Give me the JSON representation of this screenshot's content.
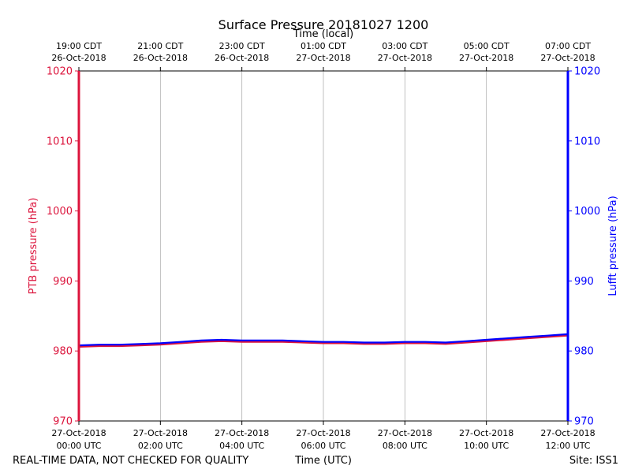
{
  "chart_data": {
    "type": "line",
    "title": "Surface Pressure 20181027 1200",
    "xlabel_bottom": "Time (UTC)",
    "xlabel_top": "Time (local)",
    "ylabel_left": "PTB pressure (hPa)",
    "ylabel_right": "Lufft pressure (hPa)",
    "ylim": [
      970,
      1020
    ],
    "yticks": [
      970,
      980,
      990,
      1000,
      1010,
      1020
    ],
    "xlim_hours": [
      0,
      12
    ],
    "bottom_ticks": [
      {
        "hour": 0,
        "line1": "27-Oct-2018",
        "line2": "00:00 UTC"
      },
      {
        "hour": 2,
        "line1": "27-Oct-2018",
        "line2": "02:00 UTC"
      },
      {
        "hour": 4,
        "line1": "27-Oct-2018",
        "line2": "04:00 UTC"
      },
      {
        "hour": 6,
        "line1": "27-Oct-2018",
        "line2": "06:00 UTC"
      },
      {
        "hour": 8,
        "line1": "27-Oct-2018",
        "line2": "08:00 UTC"
      },
      {
        "hour": 10,
        "line1": "27-Oct-2018",
        "line2": "10:00 UTC"
      },
      {
        "hour": 12,
        "line1": "27-Oct-2018",
        "line2": "12:00 UTC"
      }
    ],
    "top_ticks": [
      {
        "hour": 0,
        "line1": "19:00 CDT",
        "line2": "26-Oct-2018"
      },
      {
        "hour": 2,
        "line1": "21:00 CDT",
        "line2": "26-Oct-2018"
      },
      {
        "hour": 4,
        "line1": "23:00 CDT",
        "line2": "26-Oct-2018"
      },
      {
        "hour": 6,
        "line1": "01:00 CDT",
        "line2": "27-Oct-2018"
      },
      {
        "hour": 8,
        "line1": "03:00 CDT",
        "line2": "27-Oct-2018"
      },
      {
        "hour": 10,
        "line1": "05:00 CDT",
        "line2": "27-Oct-2018"
      },
      {
        "hour": 12,
        "line1": "07:00 CDT",
        "line2": "27-Oct-2018"
      }
    ],
    "series": [
      {
        "name": "PTB pressure",
        "color": "#dc143c",
        "axis": "left",
        "x": [
          0,
          0.5,
          1,
          1.5,
          2,
          2.5,
          3,
          3.5,
          4,
          4.5,
          5,
          5.5,
          6,
          6.5,
          7,
          7.5,
          8,
          8.5,
          9,
          9.5,
          10,
          10.5,
          11,
          11.5,
          12
        ],
        "values": [
          980.6,
          980.7,
          980.7,
          980.8,
          980.9,
          981.1,
          981.3,
          981.4,
          981.3,
          981.3,
          981.3,
          981.2,
          981.1,
          981.1,
          981.0,
          981.0,
          981.1,
          981.1,
          981.0,
          981.2,
          981.4,
          981.6,
          981.8,
          982.0,
          982.2
        ]
      },
      {
        "name": "Lufft pressure",
        "color": "#0000ff",
        "axis": "right",
        "x": [
          0,
          0.5,
          1,
          1.5,
          2,
          2.5,
          3,
          3.5,
          4,
          4.5,
          5,
          5.5,
          6,
          6.5,
          7,
          7.5,
          8,
          8.5,
          9,
          9.5,
          10,
          10.5,
          11,
          11.5,
          12
        ],
        "values": [
          980.8,
          980.9,
          980.9,
          981.0,
          981.1,
          981.3,
          981.5,
          981.6,
          981.5,
          981.5,
          981.5,
          981.4,
          981.3,
          981.3,
          981.2,
          981.2,
          981.3,
          981.3,
          981.2,
          981.4,
          981.6,
          981.8,
          982.0,
          982.2,
          982.4
        ]
      }
    ]
  },
  "footer": {
    "disclaimer": "REAL-TIME DATA, NOT CHECKED FOR QUALITY",
    "site": "Site: ISS1"
  },
  "colors": {
    "left_axis": "#dc143c",
    "right_axis": "#0000ff",
    "grid": "#b0b0b0"
  }
}
